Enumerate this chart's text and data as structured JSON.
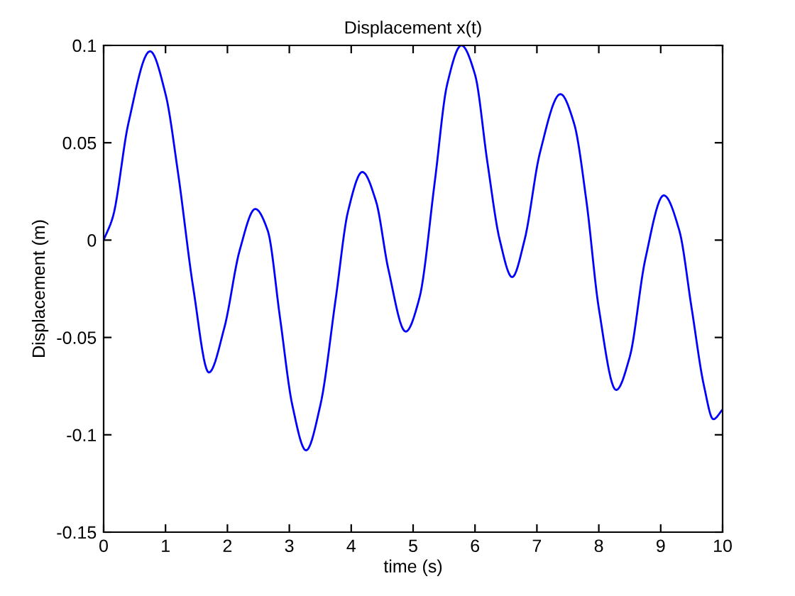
{
  "chart_data": {
    "type": "line",
    "title": "Displacement x(t)",
    "xlabel": "time (s)",
    "ylabel": "Displacement (m)",
    "x": [
      0,
      0.15,
      0.4,
      0.75,
      1.0,
      1.2,
      1.45,
      1.7,
      1.95,
      2.2,
      2.45,
      2.65,
      2.85,
      3.05,
      3.27,
      3.5,
      3.75,
      3.95,
      4.18,
      4.4,
      4.6,
      4.88,
      5.1,
      5.35,
      5.55,
      5.78,
      6.0,
      6.2,
      6.4,
      6.6,
      6.8,
      7.05,
      7.38,
      7.6,
      7.8,
      8.0,
      8.28,
      8.5,
      8.75,
      9.05,
      9.3,
      9.5,
      9.7,
      9.85,
      10
    ],
    "series": [
      {
        "color": "#0000ff",
        "values": [
          0,
          0.012,
          0.06,
          0.097,
          0.075,
          0.035,
          -0.025,
          -0.068,
          -0.045,
          -0.005,
          0.016,
          0.005,
          -0.04,
          -0.085,
          -0.108,
          -0.085,
          -0.03,
          0.015,
          0.035,
          0.02,
          -0.015,
          -0.047,
          -0.03,
          0.03,
          0.08,
          0.1,
          0.085,
          0.04,
          0.0,
          -0.019,
          0.0,
          0.045,
          0.075,
          0.06,
          0.02,
          -0.035,
          -0.077,
          -0.06,
          -0.01,
          0.023,
          0.005,
          -0.035,
          -0.075,
          -0.092,
          -0.087
        ]
      }
    ],
    "xlim": [
      0,
      10
    ],
    "xticks": [
      0,
      1,
      2,
      3,
      4,
      5,
      6,
      7,
      8,
      9,
      10
    ],
    "ylim": [
      -0.15,
      0.1
    ],
    "yticks": [
      -0.15,
      -0.1,
      -0.05,
      0,
      0.05,
      0.1
    ],
    "grid": false,
    "legend": false,
    "marker": "none",
    "line_style": "solid"
  }
}
